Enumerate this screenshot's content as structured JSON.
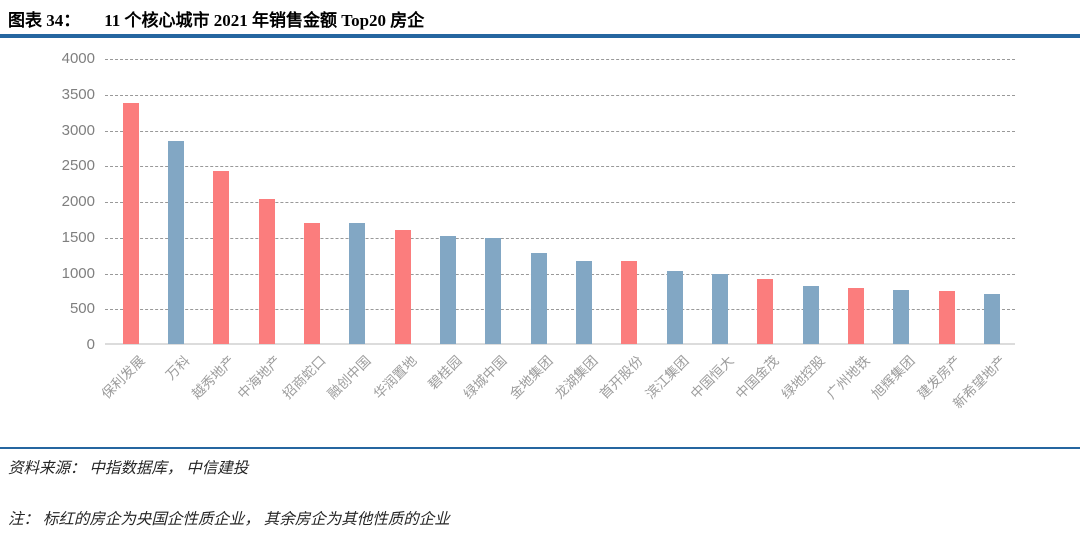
{
  "figure": {
    "label": "图表 34：",
    "title": "11 个核心城市 2021 年销售金额 Top20 房企"
  },
  "chart_data": {
    "type": "bar",
    "title": "11 个核心城市 2021 年销售金额 Top20 房企",
    "xlabel": "",
    "ylabel": "",
    "ylim": [
      0,
      4000
    ],
    "yticks": [
      0,
      500,
      1000,
      1500,
      2000,
      2500,
      3000,
      3500,
      4000
    ],
    "grid": "horizontal-dashed",
    "legend_position": "none",
    "categories": [
      "保利发展",
      "万科",
      "越秀地产",
      "中海地产",
      "招商蛇口",
      "融创中国",
      "华润置地",
      "碧桂园",
      "绿城中国",
      "金地集团",
      "龙湖集团",
      "首开股份",
      "滨江集团",
      "中国恒大",
      "中国金茂",
      "绿地控股",
      "广州地铁",
      "旭辉集团",
      "建发房产",
      "新希望地产"
    ],
    "values": [
      3380,
      2850,
      2440,
      2040,
      1710,
      1700,
      1610,
      1520,
      1500,
      1280,
      1180,
      1170,
      1040,
      1000,
      920,
      825,
      795,
      775,
      750,
      710
    ],
    "is_state_owned": [
      true,
      false,
      true,
      true,
      true,
      false,
      true,
      false,
      false,
      false,
      false,
      true,
      false,
      false,
      true,
      false,
      true,
      false,
      true,
      false
    ],
    "colors": {
      "state_owned_bar": "#FB7D7D",
      "other_bar": "#82A7C4"
    }
  },
  "footer": {
    "source": "资料来源： 中指数据库， 中信建投",
    "note": "注： 标红的房企为央国企性质企业， 其余房企为其他性质的企业"
  },
  "theme": {
    "rule_color": "#2566A0",
    "grid_color": "#999999",
    "axis_line_color": "#DCDCDC",
    "ytick_color": "#7F7F7F",
    "xtick_color": "#9C9C9C",
    "title_color": "#000000",
    "note_color": "#262626"
  }
}
